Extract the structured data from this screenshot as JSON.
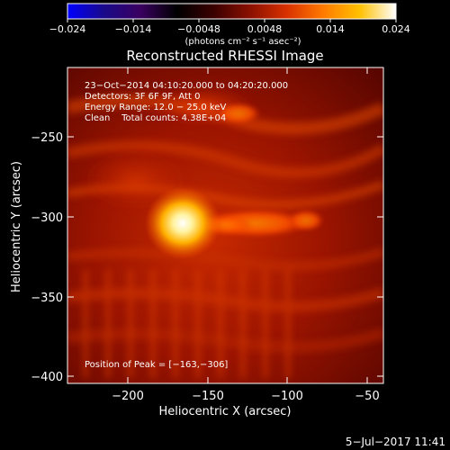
{
  "colorbar": {
    "ticks": [
      "−0.024",
      "−0.014",
      "−0.0048",
      "0.0048",
      "0.014",
      "0.024"
    ],
    "units_label": "(photons cm⁻² s⁻¹ asec⁻²)",
    "stops": [
      "#0000ff",
      "#1a0a8a",
      "#3a0060",
      "#000000",
      "#3a0000",
      "#8a1000",
      "#d83000",
      "#ff7a00",
      "#ffc000",
      "#ffffff"
    ]
  },
  "plot": {
    "title": "Reconstructed RHESSI Image",
    "xlabel": "Heliocentric X (arcsec)",
    "ylabel": "Heliocentric Y (arcsec)",
    "xticks": [
      "−200",
      "−150",
      "−100",
      "−50"
    ],
    "yticks": [
      "−250",
      "−300",
      "−350",
      "−400"
    ]
  },
  "info": {
    "line1": "23−Oct−2014 04:10:20.000 to 04:20:20.000",
    "line2": "Detectors: 3F 6F 9F, Att 0",
    "line3": "Energy Range: 12.0 − 25.0 keV",
    "line4": "Clean    Total counts: 4.38E+04",
    "peak": "Position of Peak = [−163,−306]"
  },
  "footer": {
    "date": "5−Jul−2017 11:41"
  }
}
